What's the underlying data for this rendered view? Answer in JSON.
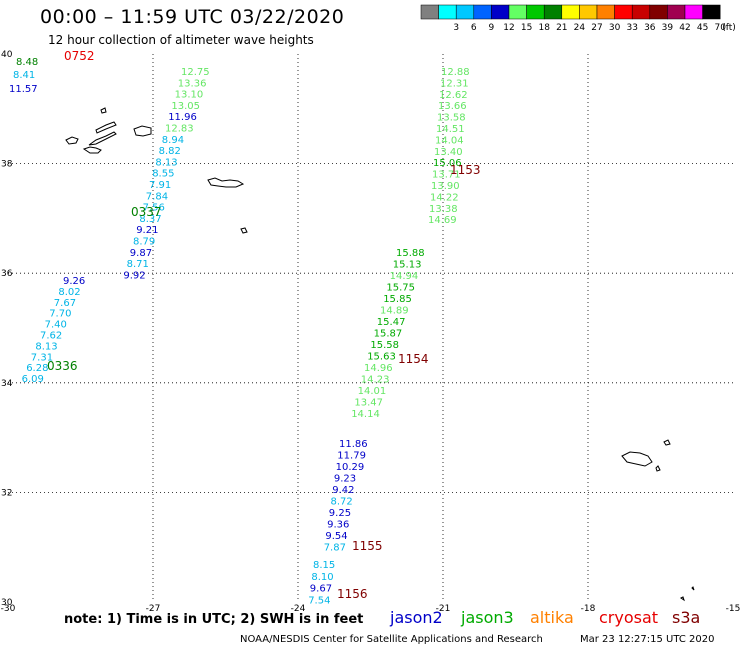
{
  "title": "00:00 – 11:59 UTC 03/22/2020",
  "subtitle": "12 hour collection of altimeter wave heights",
  "colorbar": {
    "unit": "(ft)",
    "bins": [
      {
        "label": "",
        "color": "#808080"
      },
      {
        "label": "3",
        "color": "#00ffff"
      },
      {
        "label": "6",
        "color": "#00c8ff"
      },
      {
        "label": "9",
        "color": "#0064ff"
      },
      {
        "label": "12",
        "color": "#0000c8"
      },
      {
        "label": "15",
        "color": "#64ff64"
      },
      {
        "label": "18",
        "color": "#00c800"
      },
      {
        "label": "21",
        "color": "#008000"
      },
      {
        "label": "24",
        "color": "#ffff00"
      },
      {
        "label": "27",
        "color": "#ffc800"
      },
      {
        "label": "30",
        "color": "#ff8000"
      },
      {
        "label": "33",
        "color": "#ff0000"
      },
      {
        "label": "36",
        "color": "#c80000"
      },
      {
        "label": "39",
        "color": "#800000"
      },
      {
        "label": "42",
        "color": "#a00050"
      },
      {
        "label": "45",
        "color": "#ff00ff"
      },
      {
        "label": "70",
        "color": "#000000"
      }
    ]
  },
  "axes": {
    "lon_ticks": [
      "-30",
      "-27",
      "-24",
      "-21",
      "-18",
      "-15"
    ],
    "lat_ticks": [
      "40",
      "38",
      "36",
      "34",
      "32",
      "30"
    ]
  },
  "colors": {
    "cyan": "#00b4e6",
    "blue": "#0000c8",
    "lightgreen": "#64e664",
    "green": "#00aa00",
    "darkgreen": "#008000",
    "darkred": "#800000",
    "red": "#e60000"
  },
  "tracks": [
    {
      "time_label": "0752",
      "time_color": "#e60000",
      "points": [
        {
          "text": "8.48",
          "color": "#008000"
        },
        {
          "text": "8.41",
          "color": "#00b4e6"
        },
        {
          "text": "11.57",
          "color": "#0000c8"
        }
      ]
    },
    {
      "time_label": "0337",
      "time_color": "#008000",
      "points": [
        {
          "text": "12.75",
          "color": "#64e664"
        },
        {
          "text": "13.36",
          "color": "#64e664"
        },
        {
          "text": "13.10",
          "color": "#64e664"
        },
        {
          "text": "13.05",
          "color": "#64e664"
        },
        {
          "text": "11.96",
          "color": "#0000c8"
        },
        {
          "text": "12.83",
          "color": "#64e664"
        },
        {
          "text": "8.94",
          "color": "#00b4e6"
        },
        {
          "text": "8.82",
          "color": "#00b4e6"
        },
        {
          "text": "8.13",
          "color": "#00b4e6"
        },
        {
          "text": "8.55",
          "color": "#00b4e6"
        },
        {
          "text": "7.91",
          "color": "#00b4e6"
        },
        {
          "text": "7.84",
          "color": "#00b4e6"
        },
        {
          "text": "7.56",
          "color": "#00b4e6"
        },
        {
          "text": "8.37",
          "color": "#00b4e6"
        },
        {
          "text": "9.21",
          "color": "#0000c8"
        },
        {
          "text": "8.79",
          "color": "#00b4e6"
        },
        {
          "text": "9.87",
          "color": "#0000c8"
        },
        {
          "text": "8.71",
          "color": "#00b4e6"
        },
        {
          "text": "9.92",
          "color": "#0000c8"
        }
      ]
    },
    {
      "time_label": "0336",
      "time_color": "#008000",
      "points": [
        {
          "text": "9.26",
          "color": "#0000c8"
        },
        {
          "text": "8.02",
          "color": "#00b4e6"
        },
        {
          "text": "7.67",
          "color": "#00b4e6"
        },
        {
          "text": "7.70",
          "color": "#00b4e6"
        },
        {
          "text": "7.40",
          "color": "#00b4e6"
        },
        {
          "text": "7.62",
          "color": "#00b4e6"
        },
        {
          "text": "8.13",
          "color": "#00b4e6"
        },
        {
          "text": "7.31",
          "color": "#00b4e6"
        },
        {
          "text": "6.28",
          "color": "#00b4e6"
        },
        {
          "text": "6.09",
          "color": "#00b4e6"
        }
      ]
    },
    {
      "time_label": "1153",
      "time_color": "#800000",
      "points": [
        {
          "text": "12.88",
          "color": "#64e664"
        },
        {
          "text": "12.31",
          "color": "#64e664"
        },
        {
          "text": "12.62",
          "color": "#64e664"
        },
        {
          "text": "13.66",
          "color": "#64e664"
        },
        {
          "text": "13.58",
          "color": "#64e664"
        },
        {
          "text": "14.51",
          "color": "#64e664"
        },
        {
          "text": "14.04",
          "color": "#64e664"
        },
        {
          "text": "13.40",
          "color": "#64e664"
        },
        {
          "text": "15.06",
          "color": "#00aa00"
        },
        {
          "text": "13.71",
          "color": "#64e664"
        },
        {
          "text": "13.90",
          "color": "#64e664"
        },
        {
          "text": "14.22",
          "color": "#64e664"
        },
        {
          "text": "13.38",
          "color": "#64e664"
        },
        {
          "text": "14.69",
          "color": "#64e664"
        }
      ]
    },
    {
      "time_label": "1154",
      "time_color": "#800000",
      "points": [
        {
          "text": "15.88",
          "color": "#00aa00"
        },
        {
          "text": "15.13",
          "color": "#00aa00"
        },
        {
          "text": "14.94",
          "color": "#64e664"
        },
        {
          "text": "15.75",
          "color": "#00aa00"
        },
        {
          "text": "15.85",
          "color": "#00aa00"
        },
        {
          "text": "14.89",
          "color": "#64e664"
        },
        {
          "text": "15.47",
          "color": "#00aa00"
        },
        {
          "text": "15.87",
          "color": "#00aa00"
        },
        {
          "text": "15.58",
          "color": "#00aa00"
        },
        {
          "text": "15.63",
          "color": "#00aa00"
        },
        {
          "text": "14.96",
          "color": "#64e664"
        },
        {
          "text": "14.23",
          "color": "#64e664"
        },
        {
          "text": "14.01",
          "color": "#64e664"
        },
        {
          "text": "13.47",
          "color": "#64e664"
        },
        {
          "text": "14.14",
          "color": "#64e664"
        }
      ]
    },
    {
      "time_label": "1155",
      "time_color": "#800000",
      "points": [
        {
          "text": "11.86",
          "color": "#0000c8"
        },
        {
          "text": "11.79",
          "color": "#0000c8"
        },
        {
          "text": "10.29",
          "color": "#0000c8"
        },
        {
          "text": "9.23",
          "color": "#0000c8"
        },
        {
          "text": "9.42",
          "color": "#0000c8"
        },
        {
          "text": "8.72",
          "color": "#00b4e6"
        },
        {
          "text": "9.25",
          "color": "#0000c8"
        },
        {
          "text": "9.36",
          "color": "#0000c8"
        },
        {
          "text": "9.54",
          "color": "#0000c8"
        },
        {
          "text": "7.87",
          "color": "#00b4e6"
        }
      ]
    },
    {
      "time_label": "1156",
      "time_color": "#800000",
      "points": [
        {
          "text": "8.15",
          "color": "#00b4e6"
        },
        {
          "text": "8.10",
          "color": "#00b4e6"
        },
        {
          "text": "9.67",
          "color": "#0000c8"
        },
        {
          "text": "7.54",
          "color": "#00b4e6"
        }
      ]
    }
  ],
  "footer": {
    "note": "note:  1) Time is in UTC;  2) SWH is in feet",
    "satellites": [
      {
        "name": "jason2",
        "color": "#0000c8"
      },
      {
        "name": "jason3",
        "color": "#00aa00"
      },
      {
        "name": "altika",
        "color": "#ff8000"
      },
      {
        "name": "cryosat",
        "color": "#e60000"
      },
      {
        "name": "s3a",
        "color": "#800000"
      }
    ],
    "credit": "NOAA/NESDIS Center for Satellite Applications and Research",
    "generated": "Mar 23 12:27:15 UTC 2020"
  }
}
